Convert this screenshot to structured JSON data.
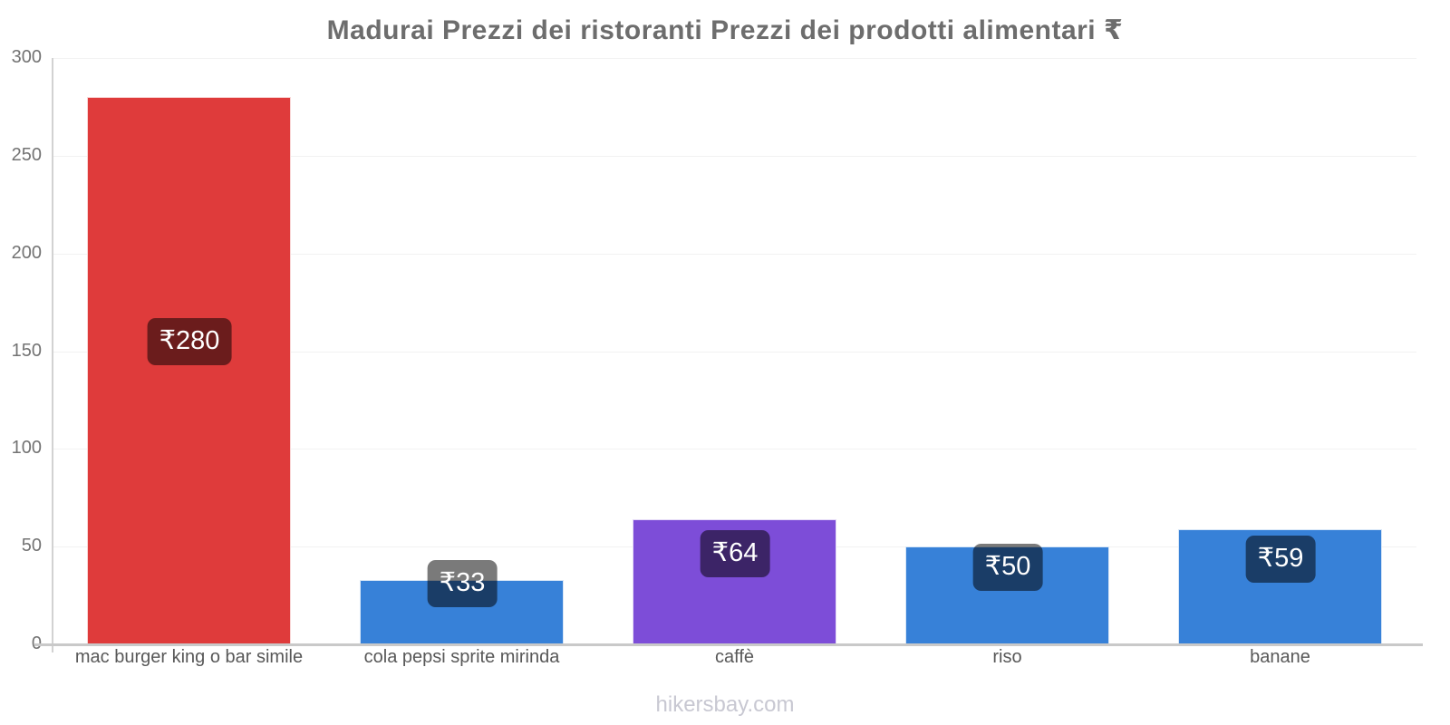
{
  "title": "Madurai Prezzi dei ristoranti Prezzi dei prodotti alimentari ₹",
  "footer": "hikersbay.com",
  "chart_data": {
    "type": "bar",
    "title": "Madurai Prezzi dei ristoranti Prezzi dei prodotti alimentari ₹",
    "categories": [
      "mac burger king o bar simile",
      "cola pepsi sprite mirinda",
      "caffè",
      "riso",
      "banane"
    ],
    "values": [
      280,
      33,
      64,
      50,
      59
    ],
    "value_labels": [
      "₹280",
      "₹33",
      "₹64",
      "₹50",
      "₹59"
    ],
    "currency": "₹",
    "colors": [
      "#df3b3b",
      "#3781d8",
      "#7d4dd8",
      "#3781d8",
      "#3781d8"
    ],
    "xlabel": "",
    "ylabel": "",
    "ylim": [
      0,
      300
    ],
    "yticks": [
      0,
      50,
      100,
      150,
      200,
      250,
      300
    ],
    "grid": "horizontal-faint",
    "legend": "none",
    "value_label_style": {
      "background": "rgba(0,0,0,0.52)",
      "text_color": "#ffffff"
    },
    "accent_colors": {
      "axis": "#c9c9c9",
      "grid": "#f2f2f2",
      "title_text": "#6d6d6d",
      "tick_text": "#737373",
      "category_text": "#585858",
      "watermark_text": "#c8c8d2"
    }
  }
}
